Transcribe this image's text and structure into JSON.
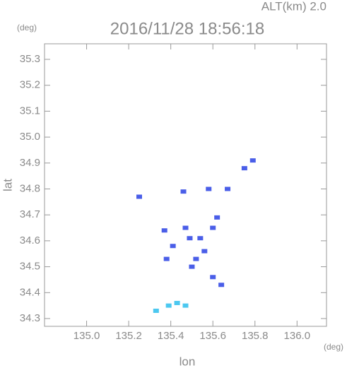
{
  "chart_data": {
    "type": "scatter",
    "title": "2016/11/28 18:56:18",
    "subtitle": "ALT(km) 2.0",
    "x_label": "lon",
    "y_label": "lat",
    "x_unit": "(deg)",
    "y_unit": "(deg)",
    "xlim": [
      134.8,
      136.14
    ],
    "ylim": [
      34.27,
      35.36
    ],
    "xticks": [
      {
        "value": 135,
        "label": "135.0"
      },
      135.2,
      135.4,
      135.6,
      135.8,
      {
        "value": 136,
        "label": "136.0"
      }
    ],
    "yticks": [
      34.3,
      34.4,
      34.5,
      34.6,
      34.7,
      34.8,
      34.9,
      {
        "value": 35,
        "label": "35.0"
      },
      35.1,
      35.2,
      35.3
    ],
    "grid": false,
    "series": [
      {
        "color": "#4a5ee8",
        "x": [
          135.75,
          135.79,
          135.25,
          135.46,
          135.58,
          135.67,
          135.62,
          135.6,
          135.47,
          135.37,
          135.54,
          135.49,
          135.56,
          135.52,
          135.38,
          135.5,
          135.6,
          135.64,
          135.41
        ],
        "values": [
          34.88,
          34.91,
          34.77,
          34.79,
          34.8,
          34.8,
          34.69,
          34.65,
          34.65,
          34.64,
          34.61,
          34.61,
          34.56,
          34.53,
          34.53,
          34.5,
          34.46,
          34.43,
          34.58
        ]
      },
      {
        "color": "#4cc8f0",
        "x": [
          135.47,
          135.39,
          135.33,
          135.43
        ],
        "values": [
          34.35,
          34.35,
          34.33,
          34.36
        ]
      }
    ]
  }
}
